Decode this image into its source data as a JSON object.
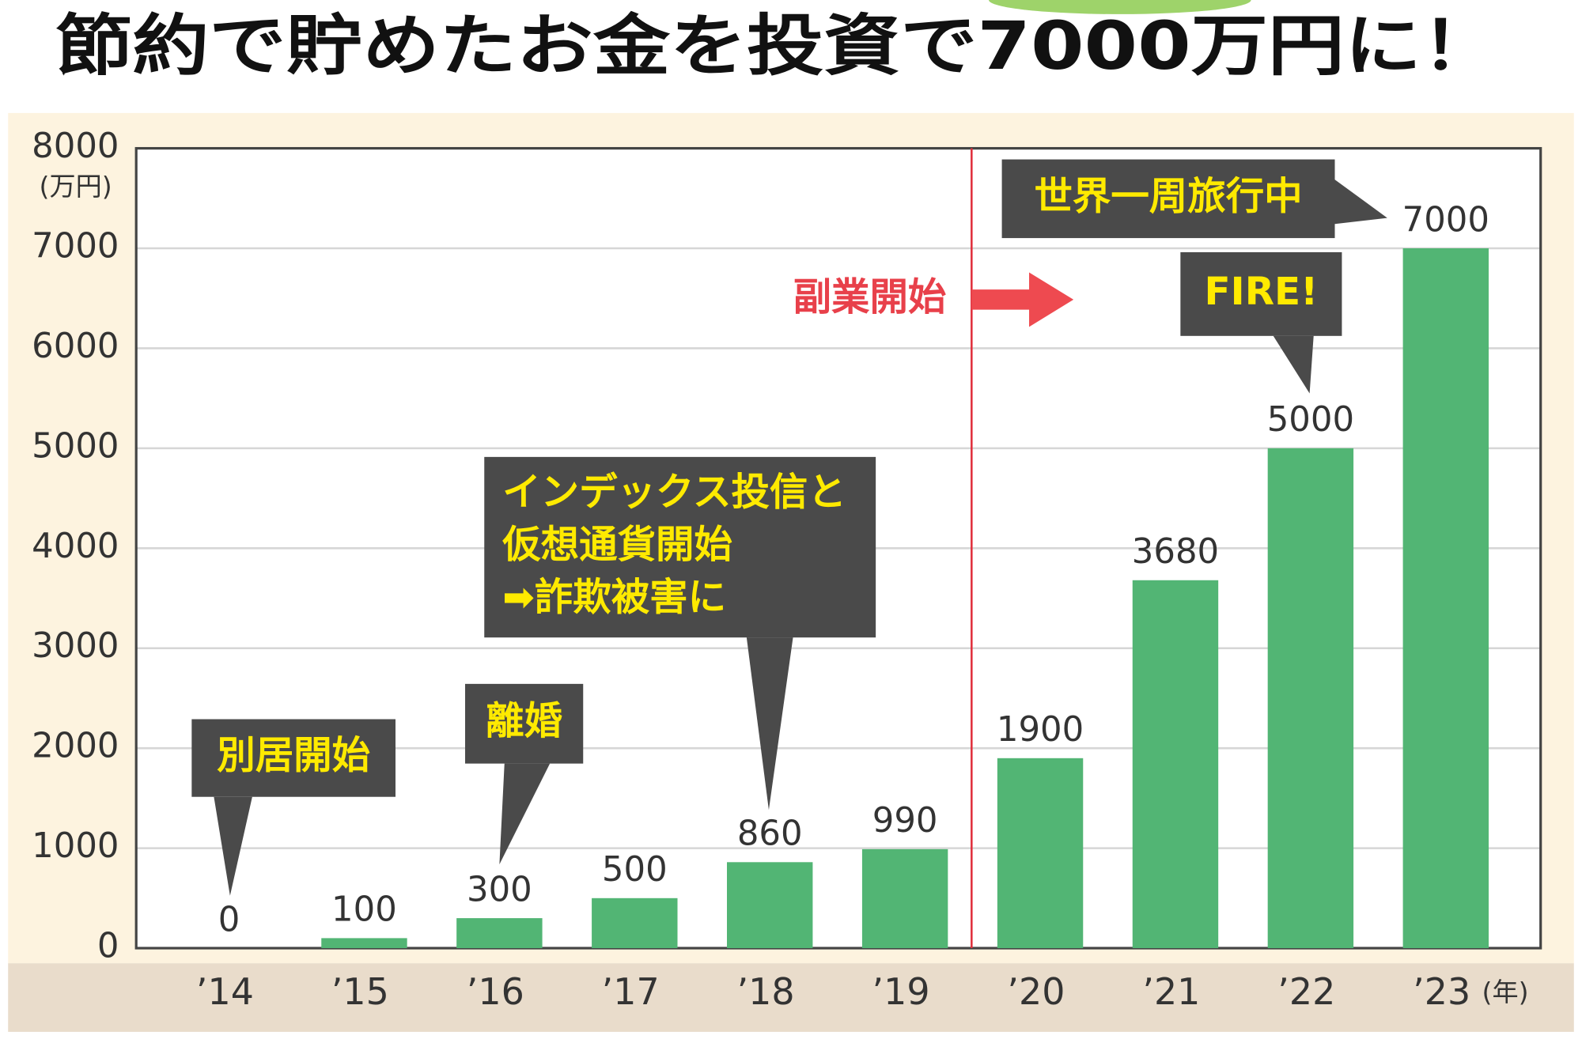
{
  "chart_data": {
    "type": "bar",
    "title": "節約で貯めたお金を投資で7000万円に！",
    "y_unit": "(万円)",
    "x_unit": "(年)",
    "categories": [
      "’14",
      "’15",
      "’16",
      "’17",
      "’18",
      "’19",
      "’20",
      "’21",
      "’22",
      "’23"
    ],
    "values": [
      0,
      100,
      300,
      500,
      860,
      990,
      1900,
      3680,
      5000,
      7000
    ],
    "color": "#52b574",
    "ylim": [
      0,
      8000
    ],
    "yticks": [
      0,
      1000,
      2000,
      3000,
      4000,
      5000,
      6000,
      7000,
      8000
    ],
    "grid": true,
    "marker_label": "副業開始",
    "annotations": [
      {
        "lines": [
          "別居開始"
        ]
      },
      {
        "lines": [
          "離婚"
        ]
      },
      {
        "lines": [
          "インデックス投信と",
          "仮想通貨開始",
          "➡詐欺被害に"
        ]
      },
      {
        "lines": [
          "世界一周旅行中"
        ]
      },
      {
        "lines": [
          "FIRE!"
        ]
      }
    ]
  }
}
